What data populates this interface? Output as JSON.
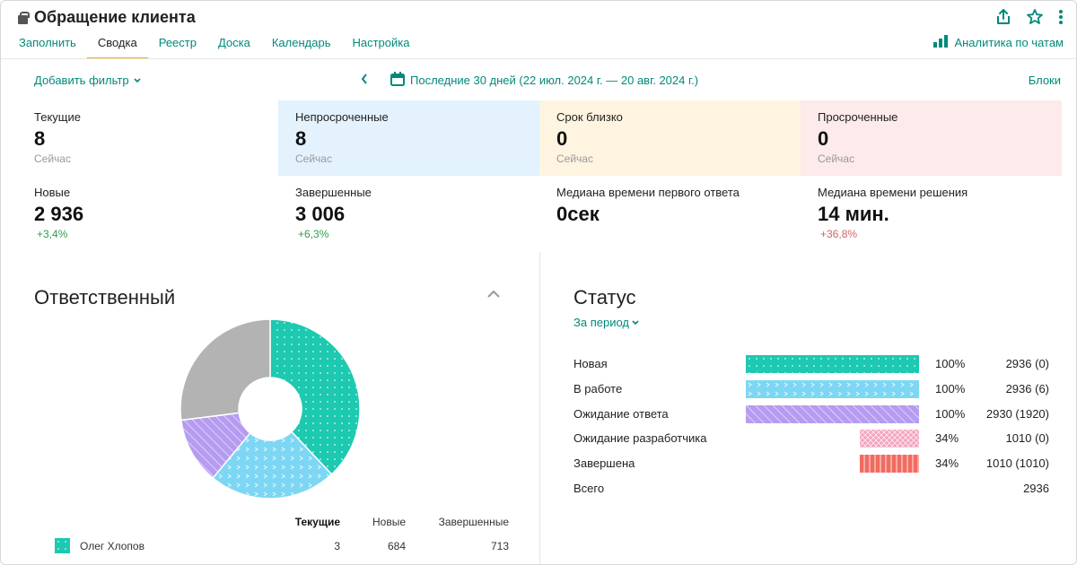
{
  "header": {
    "title": "Обращение клиента",
    "tabs": [
      {
        "label": "Заполнить",
        "active": false
      },
      {
        "label": "Сводка",
        "active": true
      },
      {
        "label": "Реестр",
        "active": false
      },
      {
        "label": "Доска",
        "active": false
      },
      {
        "label": "Календарь",
        "active": false
      },
      {
        "label": "Настройка",
        "active": false
      }
    ],
    "analytics_label": "Аналитика по чатам",
    "icons": [
      "share-icon",
      "star-icon",
      "more-vert-icon",
      "bar-chart-icon"
    ]
  },
  "filter_bar": {
    "add_filter": "Добавить фильтр",
    "date_range": "Последние 30 дней (22 июл. 2024 г. — 20 авг. 2024 г.)",
    "blocks": "Блоки"
  },
  "metrics": {
    "row1": [
      {
        "label": "Текущие",
        "value": "8",
        "sub": "Сейчас",
        "bg": "#ffffff"
      },
      {
        "label": "Непросроченные",
        "value": "8",
        "sub": "Сейчас",
        "bg": "#e3f2fd"
      },
      {
        "label": "Срок близко",
        "value": "0",
        "sub": "Сейчас",
        "bg": "#fff4e0"
      },
      {
        "label": "Просроченные",
        "value": "0",
        "sub": "Сейчас",
        "bg": "#fdeaea"
      }
    ],
    "row2": [
      {
        "label": "Новые",
        "value": "2 936",
        "change": "+3,4%",
        "trend": "positive"
      },
      {
        "label": "Завершенные",
        "value": "3 006",
        "change": "+6,3%",
        "trend": "positive"
      },
      {
        "label": "Медиана времени первого ответа",
        "value": "0сек",
        "change": "",
        "trend": "none"
      },
      {
        "label": "Медиана времени решения",
        "value": "14 мин.",
        "change": "+36,8%",
        "trend": "negative"
      }
    ]
  },
  "responsible": {
    "title": "Ответственный",
    "columns": [
      "Текущие",
      "Новые",
      "Завершенные"
    ],
    "rows": [
      {
        "name": "Олег Хлопов",
        "current": "3",
        "new": "684",
        "done": "713",
        "color": "#1dc9b0"
      }
    ],
    "donut": {
      "slices": [
        {
          "value": 38,
          "color": "#1dc9b0",
          "pattern": "dots"
        },
        {
          "value": 23,
          "color": "#7dd7f4",
          "pattern": "chevrons"
        },
        {
          "value": 12,
          "color": "#b69cf0",
          "pattern": "stripes"
        },
        {
          "value": 27,
          "color": "#b3b3b3",
          "pattern": "none"
        }
      ]
    }
  },
  "status": {
    "title": "Статус",
    "period": "За период",
    "rows": [
      {
        "name": "Новая",
        "share": 1.0,
        "pct": "100%",
        "count": "2936 (0)",
        "color": "#1dc9b0",
        "pattern": "dots"
      },
      {
        "name": "В работе",
        "share": 1.0,
        "pct": "100%",
        "count": "2936 (6)",
        "color": "#7dd7f4",
        "pattern": "chevrons"
      },
      {
        "name": "Ожидание ответа",
        "share": 1.0,
        "pct": "100%",
        "count": "2930 (1920)",
        "color": "#b69cf0",
        "pattern": "stripes"
      },
      {
        "name": "Ожидание разработчика",
        "share": 0.34,
        "pct": "34%",
        "count": "1010 (0)",
        "color": "#f5a3bd",
        "pattern": "cross"
      },
      {
        "name": "Завершена",
        "share": 0.34,
        "pct": "34%",
        "count": "1010 (1010)",
        "color": "#f26b60",
        "pattern": "vlines"
      }
    ],
    "total": {
      "name": "Всего",
      "count": "2936"
    }
  }
}
